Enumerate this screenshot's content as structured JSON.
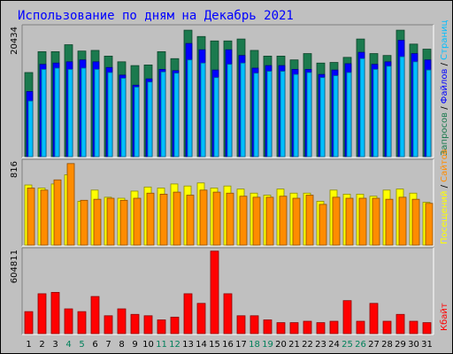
{
  "chart_data": {
    "type": "bar",
    "title": "Использование по дням на Декабрь 2021",
    "categories": [
      "1",
      "2",
      "3",
      "4",
      "5",
      "6",
      "7",
      "8",
      "9",
      "10",
      "11",
      "12",
      "13",
      "14",
      "15",
      "16",
      "17",
      "18",
      "19",
      "20",
      "21",
      "22",
      "23",
      "24",
      "25",
      "26",
      "27",
      "28",
      "29",
      "30",
      "31"
    ],
    "weekend_days": [
      "4",
      "5",
      "11",
      "12",
      "18",
      "19",
      "25",
      "26"
    ],
    "panels": [
      {
        "name": "hits-files-pages",
        "ymax_label": "20434",
        "ylim": [
          0,
          20434
        ],
        "series": [
          {
            "name": "Запросов",
            "color": "#1b7a4e",
            "values": [
              13300,
              16600,
              16600,
              17700,
              16700,
              16800,
              15900,
              15000,
              14400,
              14500,
              16600,
              15500,
              20000,
              19000,
              18300,
              18300,
              18600,
              16800,
              15900,
              15900,
              15300,
              16300,
              14800,
              14900,
              15700,
              18600,
              16300,
              16000,
              20000,
              17800,
              17000
            ]
          },
          {
            "name": "Файлов",
            "color": "#0000ff",
            "values": [
              10300,
              14600,
              14800,
              15000,
              15300,
              15000,
              14100,
              12900,
              11300,
              12300,
              13800,
              13600,
              17900,
              16900,
              13700,
              16900,
              16000,
              14000,
              14400,
              14400,
              13800,
              13800,
              13000,
              13700,
              14700,
              16500,
              14600,
              15000,
              18400,
              16300,
              15300
            ]
          },
          {
            "name": "Страниц",
            "color": "#00bfff",
            "values": [
              8800,
              13800,
              14000,
              13800,
              14000,
              13800,
              13300,
              12400,
              11000,
              11800,
              13400,
              13200,
              15300,
              14800,
              12500,
              14600,
              14800,
              13200,
              13500,
              13500,
              13000,
              13300,
              12500,
              12800,
              13300,
              15500,
              13800,
              14300,
              15800,
              15000,
              13700
            ]
          }
        ]
      },
      {
        "name": "visits-sites",
        "ymax_label": "816",
        "ylim": [
          0,
          816
        ],
        "series": [
          {
            "name": "Посещений",
            "color": "#ffff00",
            "values": [
              590,
              560,
              600,
              690,
              430,
              540,
              470,
              460,
              530,
              570,
              560,
              600,
              580,
              610,
              560,
              580,
              550,
              510,
              490,
              550,
              510,
              510,
              430,
              540,
              500,
              500,
              480,
              540,
              550,
              510,
              420
            ]
          },
          {
            "name": "Сайтов",
            "color": "#ff8c00",
            "values": [
              560,
              540,
              640,
              800,
              440,
              450,
              460,
              440,
              460,
              510,
              500,
              520,
              490,
              540,
              520,
              510,
              480,
              470,
              470,
              480,
              460,
              490,
              400,
              470,
              460,
              460,
              460,
              450,
              470,
              450,
              410
            ]
          }
        ]
      },
      {
        "name": "kbytes",
        "ymax_label": "604811",
        "ylim": [
          0,
          604811
        ],
        "series": [
          {
            "name": "Кбайт",
            "color": "#ff0000",
            "values": [
              160000,
              290000,
              300000,
              180000,
              160000,
              270000,
              130000,
              180000,
              140000,
              130000,
              100000,
              120000,
              290000,
              220000,
              600000,
              290000,
              130000,
              130000,
              100000,
              80000,
              80000,
              90000,
              80000,
              90000,
              240000,
              90000,
              220000,
              90000,
              140000,
              90000,
              80000
            ]
          }
        ]
      }
    ],
    "side_labels": {
      "top": [
        {
          "text": "Запросов",
          "color": "#1b7a4e"
        },
        {
          "text": " / ",
          "color": "#000000"
        },
        {
          "text": "Файлов",
          "color": "#0000ff"
        },
        {
          "text": " / ",
          "color": "#000000"
        },
        {
          "text": "Страниц",
          "color": "#00bfff"
        }
      ],
      "middle": [
        {
          "text": "Посещений",
          "color": "#ffff00"
        },
        {
          "text": " / ",
          "color": "#000000"
        },
        {
          "text": "Сайтов",
          "color": "#ff8c00"
        }
      ],
      "bottom": [
        {
          "text": "Кбайт",
          "color": "#ff0000"
        }
      ]
    },
    "tick_color": "#000000",
    "weekend_tick_color": "#00805a"
  }
}
